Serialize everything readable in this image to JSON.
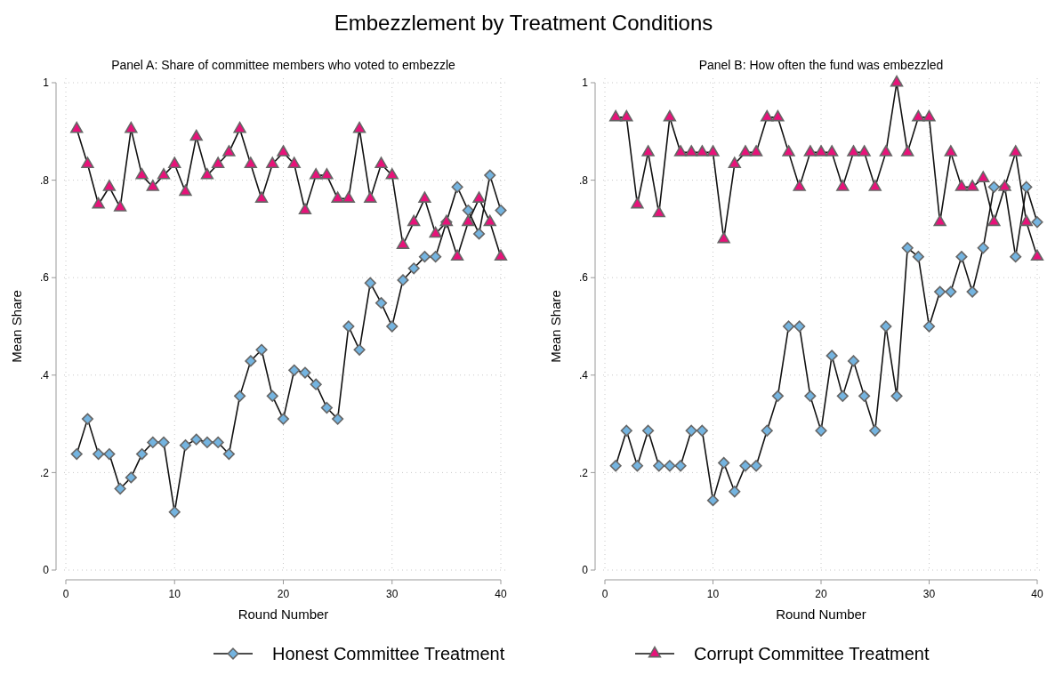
{
  "chart_data": [
    {
      "type": "line",
      "title": "Panel A: Share of committee members who voted to embezzle",
      "annotations": [
        "Embezzlement by Treatment Conditions"
      ],
      "xlabel": "Round Number",
      "ylabel": "Mean Share",
      "xlim": [
        0,
        40
      ],
      "xticks": [
        0,
        10,
        20,
        30,
        40
      ],
      "ylim": [
        0,
        1
      ],
      "yticks": [
        {
          "value": 0,
          "label": "0"
        },
        {
          "value": 0.2,
          "label": ".2"
        },
        {
          "value": 0.4,
          "label": ".4"
        },
        {
          "value": 0.6,
          "label": ".6"
        },
        {
          "value": 0.8,
          "label": ".8"
        },
        {
          "value": 1,
          "label": "1"
        }
      ],
      "grid": true,
      "legend": "bottom",
      "x": [
        1,
        2,
        3,
        4,
        5,
        6,
        7,
        8,
        9,
        10,
        11,
        12,
        13,
        14,
        15,
        16,
        17,
        18,
        19,
        20,
        21,
        22,
        23,
        24,
        25,
        26,
        27,
        28,
        29,
        30,
        31,
        32,
        33,
        34,
        35,
        36,
        37,
        38,
        39,
        40
      ],
      "series": [
        {
          "name": "Honest Committee Treatment",
          "color": "#74b4e0",
          "marker": "diamond",
          "values": [
            0.238,
            0.31,
            0.238,
            0.238,
            0.167,
            0.19,
            0.238,
            0.262,
            0.262,
            0.119,
            0.256,
            0.268,
            0.262,
            0.262,
            0.238,
            0.357,
            0.429,
            0.452,
            0.357,
            0.31,
            0.41,
            0.405,
            0.381,
            0.333,
            0.31,
            0.5,
            0.452,
            0.589,
            0.548,
            0.5,
            0.595,
            0.619,
            0.643,
            0.643,
            0.714,
            0.786,
            0.738,
            0.69,
            0.81,
            0.738
          ]
        },
        {
          "name": "Corrupt Committee Treatment",
          "color": "#e8127a",
          "marker": "triangle",
          "values": [
            0.905,
            0.833,
            0.75,
            0.786,
            0.744,
            0.905,
            0.81,
            0.786,
            0.81,
            0.833,
            0.776,
            0.889,
            0.81,
            0.833,
            0.857,
            0.905,
            0.833,
            0.762,
            0.833,
            0.857,
            0.833,
            0.738,
            0.81,
            0.81,
            0.762,
            0.762,
            0.905,
            0.762,
            0.833,
            0.81,
            0.667,
            0.714,
            0.762,
            0.69,
            0.714,
            0.643,
            0.714,
            0.762,
            0.714,
            0.643
          ]
        }
      ]
    },
    {
      "type": "line",
      "title": "Panel B: How often the fund was embezzled",
      "xlabel": "Round Number",
      "ylabel": "Mean Share",
      "xlim": [
        0,
        40
      ],
      "xticks": [
        0,
        10,
        20,
        30,
        40
      ],
      "ylim": [
        0,
        1
      ],
      "yticks": [
        {
          "value": 0,
          "label": "0"
        },
        {
          "value": 0.2,
          "label": ".2"
        },
        {
          "value": 0.4,
          "label": ".4"
        },
        {
          "value": 0.6,
          "label": ".6"
        },
        {
          "value": 0.8,
          "label": ".8"
        },
        {
          "value": 1,
          "label": "1"
        }
      ],
      "grid": true,
      "legend": "bottom",
      "x": [
        1,
        2,
        3,
        4,
        5,
        6,
        7,
        8,
        9,
        10,
        11,
        12,
        13,
        14,
        15,
        16,
        17,
        18,
        19,
        20,
        21,
        22,
        23,
        24,
        25,
        26,
        27,
        28,
        29,
        30,
        31,
        32,
        33,
        34,
        35,
        36,
        37,
        38,
        39,
        40
      ],
      "series": [
        {
          "name": "Honest Committee Treatment",
          "color": "#74b4e0",
          "marker": "diamond",
          "values": [
            0.214,
            0.286,
            0.214,
            0.286,
            0.214,
            0.214,
            0.214,
            0.286,
            0.286,
            0.143,
            0.22,
            0.161,
            0.214,
            0.214,
            0.286,
            0.357,
            0.5,
            0.5,
            0.357,
            0.286,
            0.44,
            0.357,
            0.429,
            0.357,
            0.286,
            0.5,
            0.357,
            0.661,
            0.643,
            0.5,
            0.571,
            0.571,
            0.643,
            0.571,
            0.661,
            0.786,
            0.786,
            0.643,
            0.786,
            0.714
          ]
        },
        {
          "name": "Corrupt Committee Treatment",
          "color": "#e8127a",
          "marker": "triangle",
          "values": [
            0.929,
            0.929,
            0.75,
            0.857,
            0.732,
            0.929,
            0.857,
            0.857,
            0.857,
            0.857,
            0.679,
            0.833,
            0.857,
            0.857,
            0.929,
            0.929,
            0.857,
            0.786,
            0.857,
            0.857,
            0.857,
            0.786,
            0.857,
            0.857,
            0.786,
            0.857,
            1,
            0.857,
            0.929,
            0.929,
            0.714,
            0.857,
            0.786,
            0.786,
            0.804,
            0.714,
            0.786,
            0.857,
            0.714,
            0.643
          ]
        }
      ]
    }
  ]
}
